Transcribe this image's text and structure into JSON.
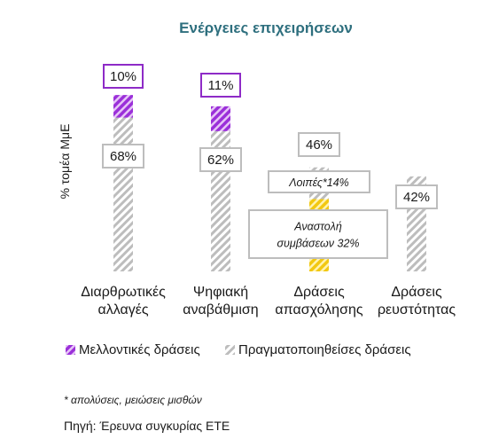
{
  "chart_data": {
    "type": "bar",
    "stacked": true,
    "title": "Ενέργειες επιχειρήσεων",
    "ylabel": "% τομέα ΜμΕ",
    "ylim": [
      0,
      110
    ],
    "grid": false,
    "legend_position": "bottom",
    "categories": [
      [
        "Διαρθρωτικές",
        "αλλαγές"
      ],
      [
        "Ψηφιακή",
        "αναβάθμιση"
      ],
      [
        "Δράσεις",
        "απασχόλησης"
      ],
      [
        "Δράσεις",
        "ρευστότητας"
      ]
    ],
    "series": [
      {
        "name": "Πραγματοποιηθείσες δράσεις",
        "values": [
          68,
          62,
          46,
          42
        ],
        "color": "#bdbdbd",
        "labels": [
          "68%",
          "62%",
          "46%",
          "42%"
        ]
      },
      {
        "name": "Μελλοντικές δράσεις",
        "values": [
          10,
          11,
          0,
          0
        ],
        "color": "#9b30d9",
        "labels": [
          "10%",
          "11%",
          "",
          ""
        ]
      }
    ],
    "segments": [
      {
        "category": 2,
        "name": "Αναστολή συμβάσεων",
        "value": 32,
        "color": "#f2c811",
        "label": [
          "Αναστολή",
          "συμβάσεων 32%"
        ]
      },
      {
        "category": 2,
        "name": "Λοιπές*",
        "value": 14,
        "color": "#bdbdbd",
        "label": [
          "Λοιπές*14%"
        ]
      }
    ]
  },
  "footnote": "* απολύσεις, μειώσεις μισθών",
  "source": "Πηγή: Έρευνα συγκυρίας ΕΤΕ"
}
